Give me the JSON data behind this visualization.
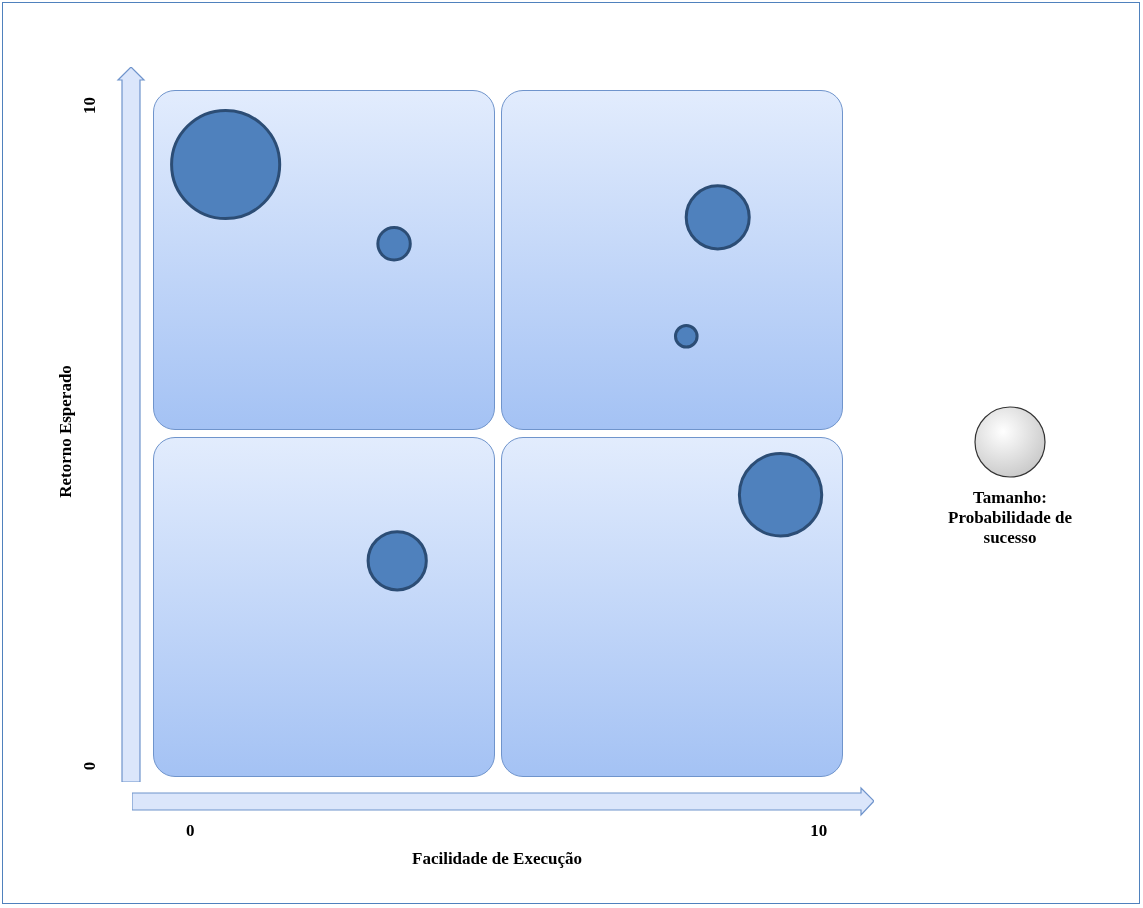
{
  "chart_data": {
    "type": "bubble",
    "xlabel": "Facilidade de Execução",
    "ylabel": "Retorno Esperado",
    "xlim": [
      -0.92,
      10.68
    ],
    "ylim": [
      -0.25,
      10.38
    ],
    "xticks": [
      0,
      10
    ],
    "yticks": [
      0,
      10
    ],
    "grid": false,
    "legend_title": "Tamanho: Probabilidade de sucesso",
    "series": [
      {
        "color": "#4f81bd",
        "x": [
          0.57,
          3.25,
          8.4,
          7.9,
          9.4,
          3.3
        ],
        "values": [
          9.1,
          7.9,
          8.3,
          6.5,
          4.1,
          3.1
        ],
        "sizes": [
          1,
          0.09,
          0.34,
          0.04,
          0.58,
          0.29
        ]
      }
    ]
  }
}
